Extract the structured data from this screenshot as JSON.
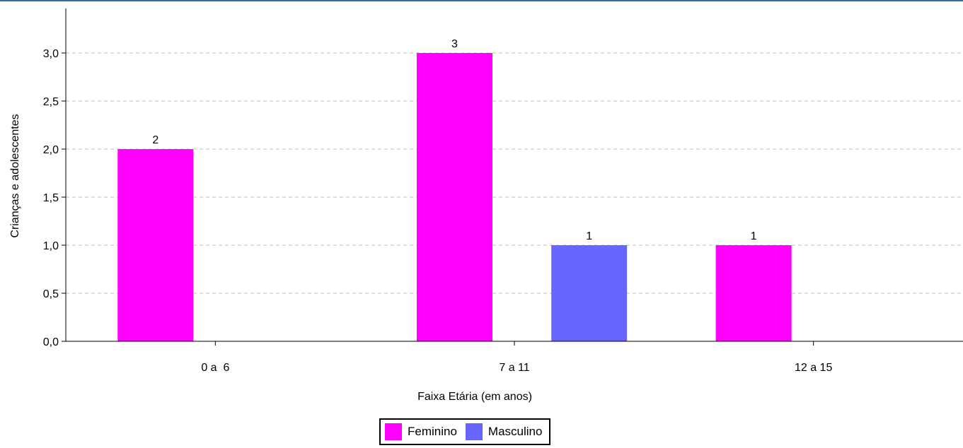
{
  "chart_data": {
    "type": "bar",
    "title": "",
    "xlabel": "Faixa Etária (em anos)",
    "ylabel": "Crianças e adolescentes",
    "categories": [
      "0 a  6",
      "7 a 11",
      "12 a 15"
    ],
    "series": [
      {
        "name": "Feminino",
        "color": "#ff00ff",
        "values": [
          2,
          3,
          1
        ]
      },
      {
        "name": "Masculino",
        "color": "#6666ff",
        "values": [
          0,
          1,
          0
        ]
      }
    ],
    "ylim": [
      0,
      3.4
    ],
    "yticks": [
      0,
      0.5,
      1,
      1.5,
      2,
      2.5,
      3
    ],
    "ytick_labels": [
      "0,0",
      "0,5",
      "1,0",
      "1,5",
      "2,0",
      "2,5",
      "3,0"
    ],
    "grid": "horizontal dashed",
    "legend_position": "bottom-center",
    "data_labels": true
  },
  "legend": {
    "items": [
      {
        "label": "Feminino",
        "color": "#ff00ff"
      },
      {
        "label": "Masculino",
        "color": "#6666ff"
      }
    ]
  }
}
